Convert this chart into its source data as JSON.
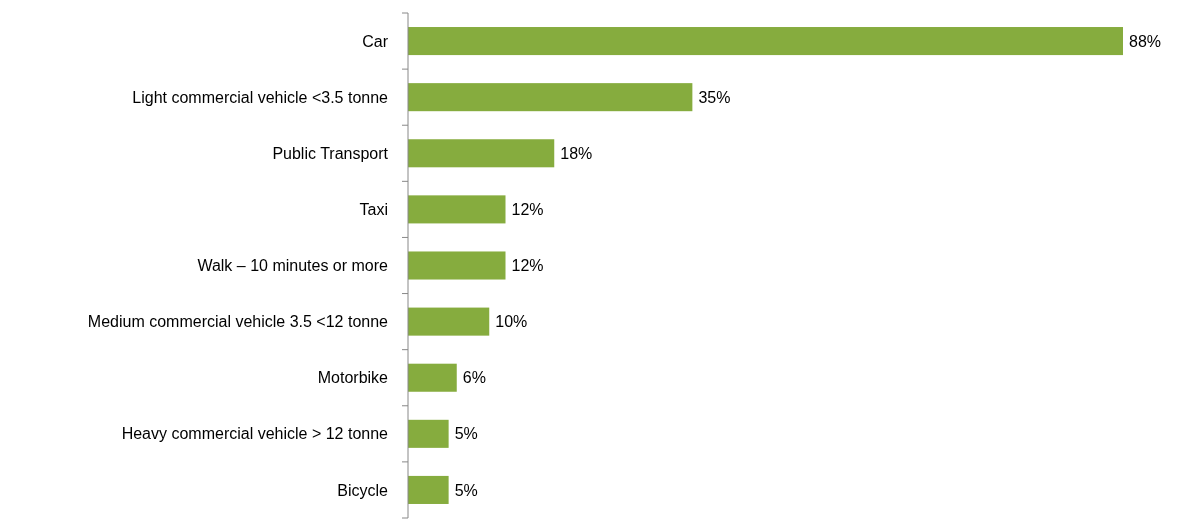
{
  "chart_data": {
    "type": "bar",
    "orientation": "horizontal",
    "categories": [
      "Car",
      "Light commercial vehicle <3.5 tonne",
      "Public Transport",
      "Taxi",
      "Walk – 10 minutes or more",
      "Medium commercial vehicle 3.5 <12 tonne",
      "Motorbike",
      "Heavy commercial vehicle > 12 tonne",
      "Bicycle"
    ],
    "values": [
      88,
      35,
      18,
      12,
      12,
      10,
      6,
      5,
      5
    ],
    "value_labels": [
      "88%",
      "35%",
      "18%",
      "12%",
      "12%",
      "10%",
      "6%",
      "5%",
      "5%"
    ],
    "color": "#86ac3e"
  }
}
